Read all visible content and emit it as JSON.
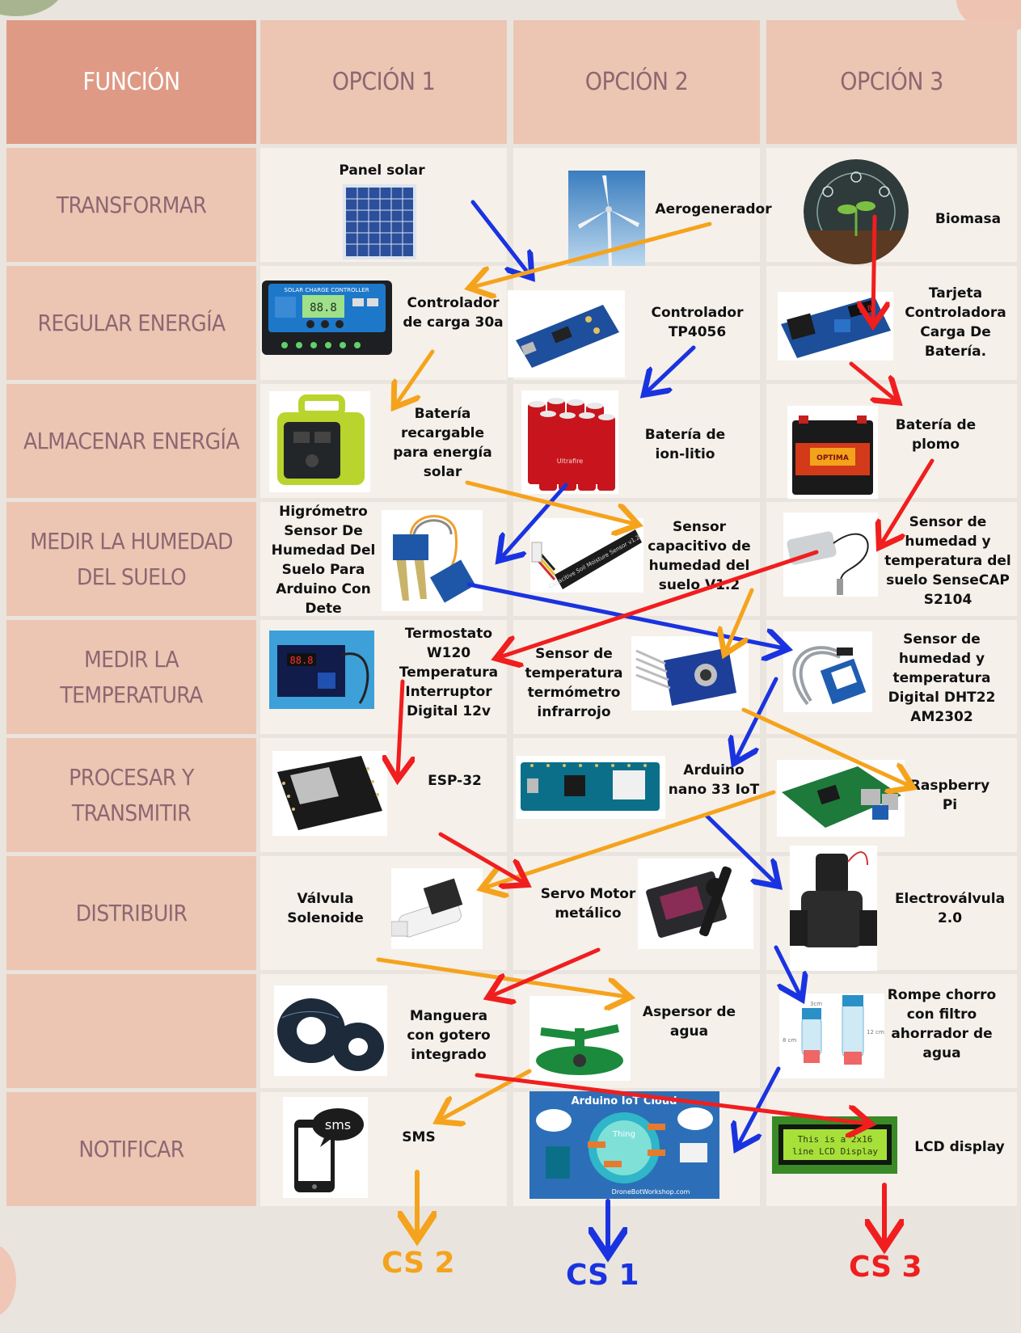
{
  "headers": [
    "FUNCIÓN",
    "OPCIÓN 1",
    "OPCIÓN 2",
    "OPCIÓN 3"
  ],
  "rows": [
    {
      "funcion": "TRANSFORMAR",
      "opciones": [
        "Panel solar",
        "Aerogenerador",
        "Biomasa"
      ]
    },
    {
      "funcion": "REGULAR ENERGÍA",
      "opciones": [
        "Controlador de carga 30a",
        "Controlador TP4056",
        "Tarjeta Controladora Carga De Batería."
      ]
    },
    {
      "funcion": "ALMACENAR ENERGÍA",
      "opciones": [
        "Batería recargable para energía solar",
        "Batería de ion-litio",
        "Batería de plomo"
      ]
    },
    {
      "funcion": "MEDIR LA HUMEDAD DEL SUELO",
      "opciones": [
        "Higrómetro Sensor De Humedad Del Suelo Para Arduino Con Dete",
        "Sensor capacitivo de humedad del suelo V1.2",
        "Sensor de humedad y temperatura del suelo SenseCAP S2104"
      ]
    },
    {
      "funcion": "MEDIR LA TEMPERATURA",
      "opciones": [
        "Termostato W120 Temperatura Interruptor Digital 12v",
        "Sensor de temperatura termómetro infrarrojo",
        "Sensor de humedad y temperatura Digital DHT22 AM2302"
      ]
    },
    {
      "funcion": "PROCESAR Y TRANSMITIR",
      "opciones": [
        "ESP-32",
        "Arduino nano 33 IoT",
        "Raspberry Pi"
      ]
    },
    {
      "funcion": "DISTRIBUIR",
      "opciones": [
        "Válvula Solenoide",
        "Servo Motor metálico",
        "Electroválvula 2.0"
      ]
    },
    {
      "funcion": "",
      "opciones": [
        "Manguera con gotero integrado",
        "Aspersor de agua",
        "Rompe chorro con filtro ahorrador de agua"
      ]
    },
    {
      "funcion": "NOTIFICAR",
      "opciones": [
        "SMS",
        "Arduino IoT Cloud",
        "LCD display"
      ]
    }
  ],
  "image_text": {
    "solar_controller": "SOLAR CHARGE CONTROLLER",
    "solar_controller_digits": "88.8",
    "iot_cloud_title": "Arduino IoT Cloud",
    "iot_thing": "Thing",
    "iot_credit": "DroneBotWorkshop.com",
    "lcd_line1": "This is a 2x16",
    "lcd_line2": "line LCD Display",
    "sms_bubble": "sms",
    "battery_brand": "Ultrafire",
    "capacitive_sensor": "Capacitive Soil Moisture Sensor v1.2",
    "thermostat_digits": "88.8",
    "optima": "OPTIMA",
    "dim_3cm": "3cm",
    "dim_8cm": "8 cm",
    "dim_12cm": "12 cm"
  },
  "conclusiones": [
    {
      "label": "CS 2",
      "color": "#f5a31d"
    },
    {
      "label": "CS 1",
      "color": "#1a33e0"
    },
    {
      "label": "CS 3",
      "color": "#f01e1e"
    }
  ],
  "colors": {
    "cs1": "#1a33e0",
    "cs2": "#f5a31d",
    "cs3": "#f01e1e",
    "header_text": "#8d6771"
  }
}
